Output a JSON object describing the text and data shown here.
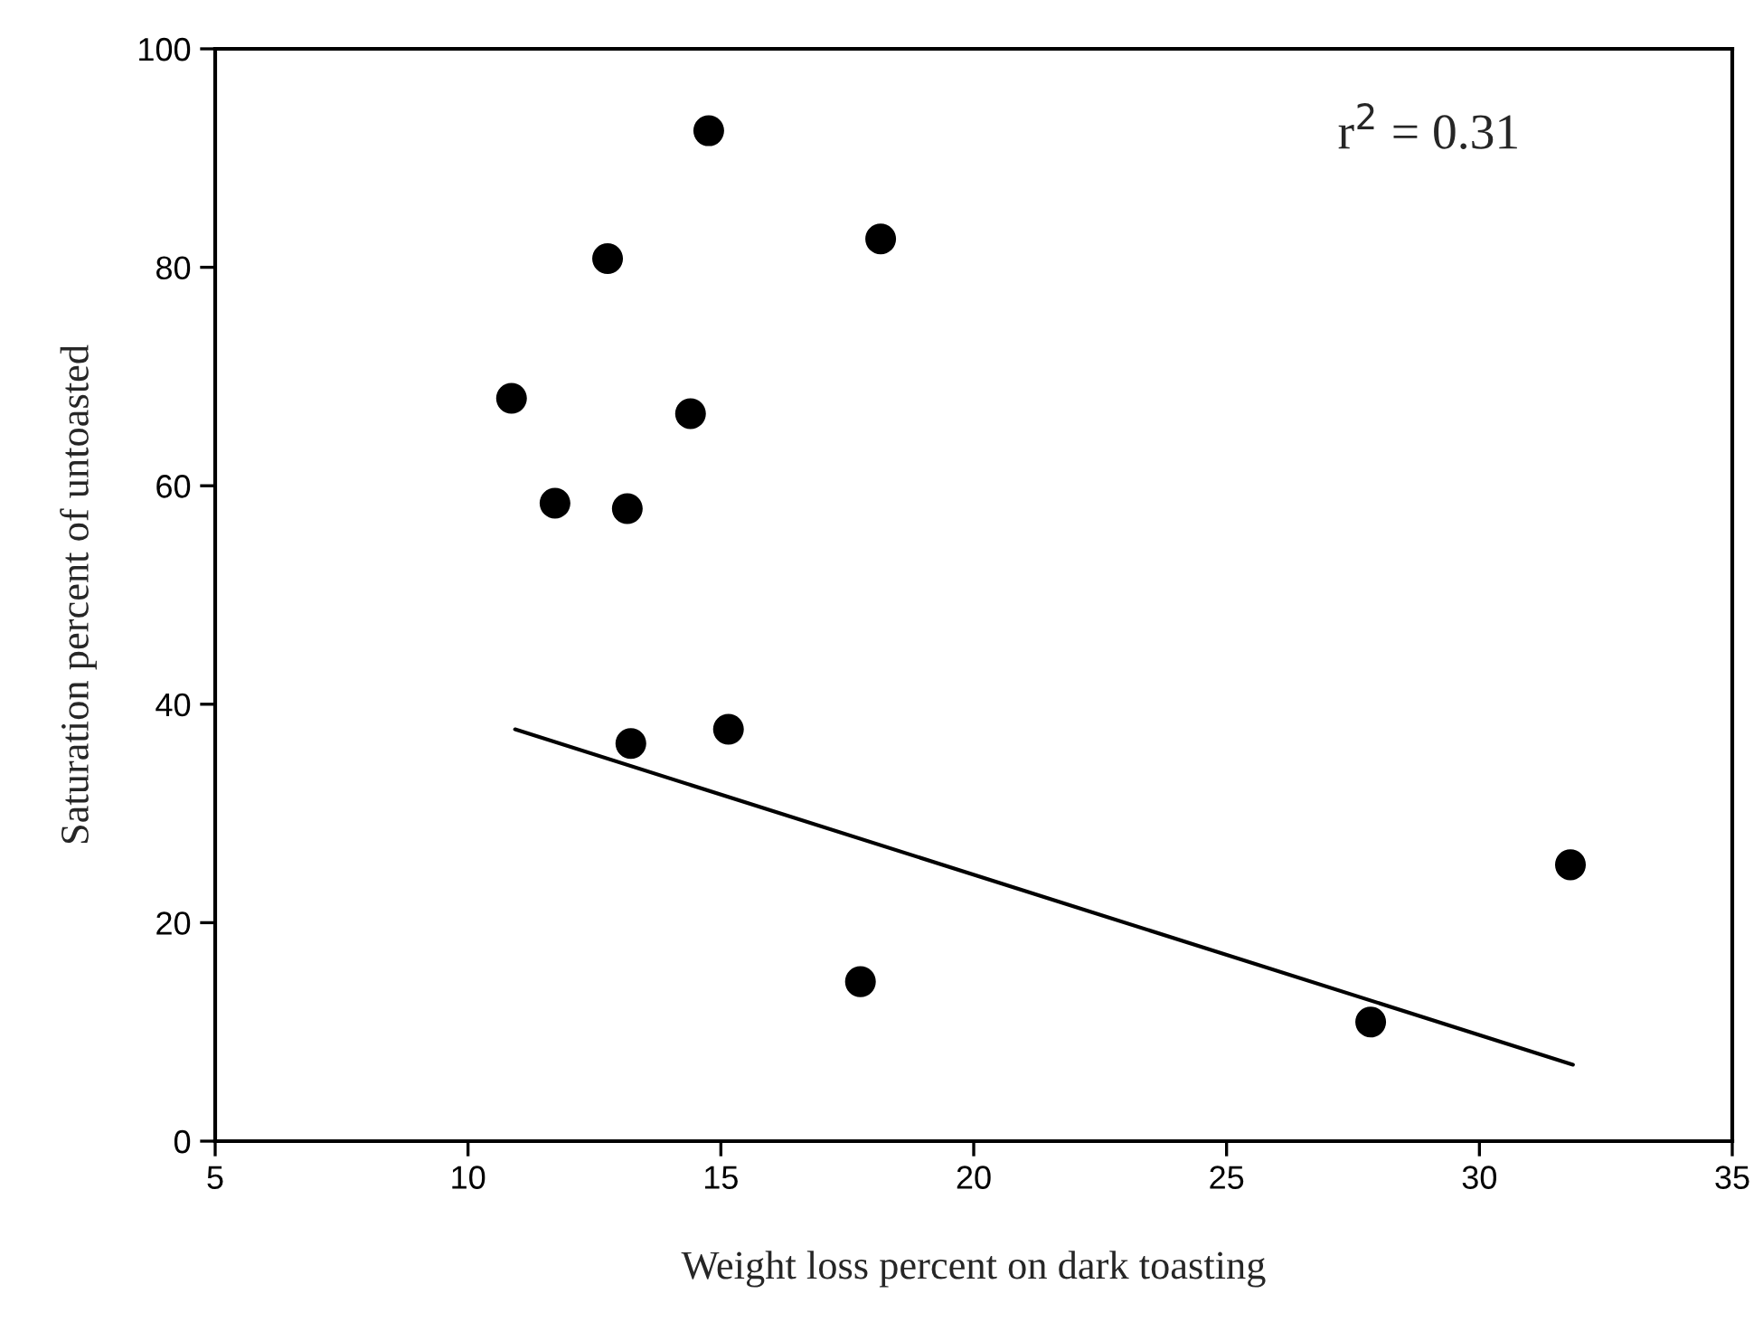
{
  "chart_data": {
    "type": "scatter",
    "xlabel": "Weight loss percent on dark toasting",
    "ylabel": "Saturation percent of untoasted",
    "series": [
      {
        "color": "#000000",
        "marker": "circle",
        "x": [
          10.86,
          11.72,
          12.76,
          13.15,
          13.22,
          14.4,
          14.76,
          15.15,
          17.76,
          18.16,
          27.85,
          31.8
        ],
        "values": [
          68.0,
          58.4,
          80.8,
          57.9,
          36.4,
          66.6,
          92.5,
          37.7,
          14.6,
          82.6,
          10.9,
          25.3
        ]
      },
      {
        "type": "line",
        "color": "#000000",
        "marker": "none",
        "line_style": "solid",
        "x": [
          10.93,
          31.85
        ],
        "values": [
          37.7,
          7.0
        ]
      }
    ],
    "annotations": [
      "r$^{2}$ = 0.31"
    ],
    "xlim": [
      5,
      35
    ],
    "xticks": [
      5,
      10,
      15,
      20,
      25,
      30,
      35
    ],
    "ylim": [
      0,
      100
    ],
    "yticks": [
      0,
      20,
      40,
      60,
      80,
      100
    ],
    "grid": false,
    "legend": false
  }
}
